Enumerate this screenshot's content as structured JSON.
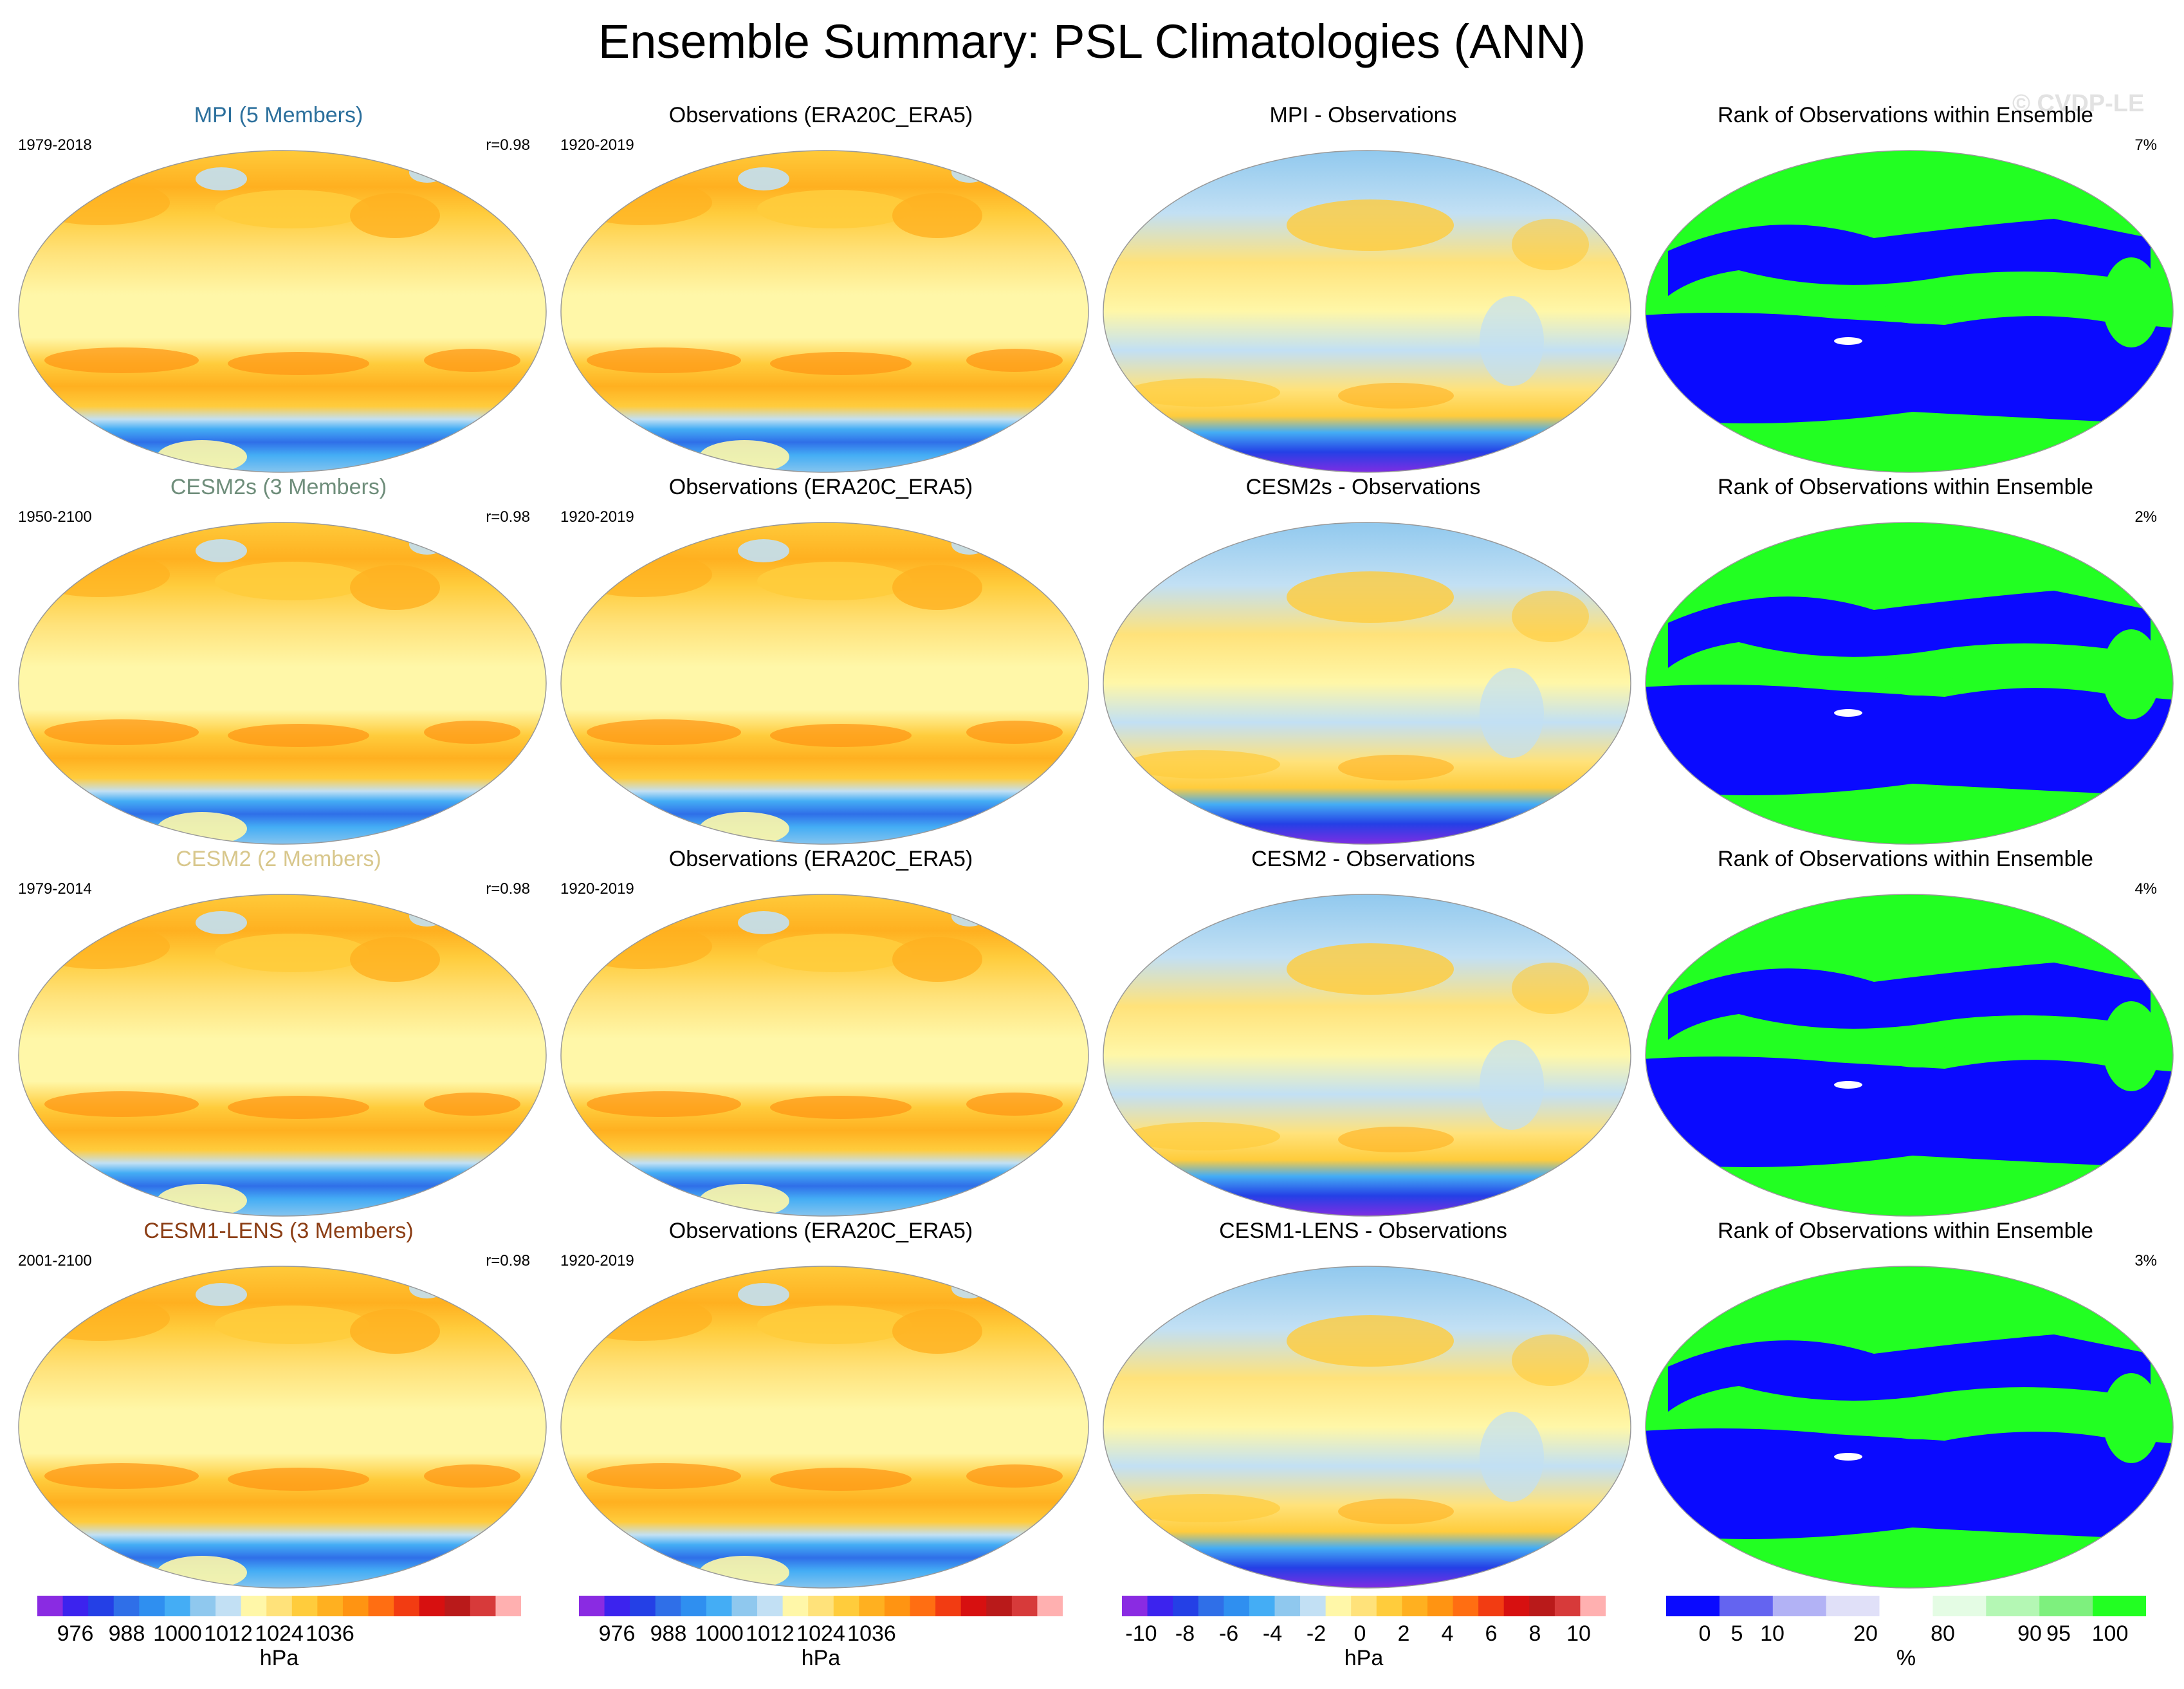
{
  "title": "Ensemble Summary: PSL Climatologies (ANN)",
  "watermark": "© CVDP-LE",
  "colors": {
    "psl_scale": [
      "#8a2be2",
      "#3c23ee",
      "#2440e6",
      "#2f6fe8",
      "#2f8ff0",
      "#44adf5",
      "#8fc8ee",
      "#c2e0f4",
      "#fff7a8",
      "#ffe27a",
      "#ffcc3c",
      "#ffb020",
      "#ff9412",
      "#ff6e12",
      "#f23c12",
      "#d71010",
      "#b91a1a",
      "#d73a3a",
      "#ffb0b0"
    ],
    "rank_scale": [
      "#0a0aff",
      "#6464f0",
      "#b2b2f5",
      "#e0e0f8",
      "#ffffff",
      "#e4fce4",
      "#b4f7b4",
      "#7ef07e",
      "#22ff22"
    ]
  },
  "rows": [
    {
      "model": {
        "title": "MPI (5 Members)",
        "title_color": "#2b6f9c",
        "years": "1979-2018",
        "r": "r=0.98"
      },
      "obs": {
        "title": "Observations (ERA20C_ERA5)",
        "years": "1920-2019"
      },
      "diff": {
        "title": "MPI - Observations"
      },
      "rank": {
        "title": "Rank of Observations within Ensemble",
        "pct": "7%"
      }
    },
    {
      "model": {
        "title": "CESM2s (3 Members)",
        "title_color": "#6e8d7a",
        "years": "1950-2100",
        "r": "r=0.98"
      },
      "obs": {
        "title": "Observations (ERA20C_ERA5)",
        "years": "1920-2019"
      },
      "diff": {
        "title": "CESM2s - Observations"
      },
      "rank": {
        "title": "Rank of Observations within Ensemble",
        "pct": "2%"
      }
    },
    {
      "model": {
        "title": "CESM2 (2 Members)",
        "title_color": "#d8c78c",
        "years": "1979-2014",
        "r": "r=0.98"
      },
      "obs": {
        "title": "Observations (ERA20C_ERA5)",
        "years": "1920-2019"
      },
      "diff": {
        "title": "CESM2 - Observations"
      },
      "rank": {
        "title": "Rank of Observations within Ensemble",
        "pct": "4%"
      }
    },
    {
      "model": {
        "title": "CESM1-LENS (3 Members)",
        "title_color": "#8b3d14",
        "years": "2001-2100",
        "r": "r=0.98"
      },
      "obs": {
        "title": "Observations (ERA20C_ERA5)",
        "years": "1920-2019"
      },
      "diff": {
        "title": "CESM1-LENS - Observations"
      },
      "rank": {
        "title": "Rank of Observations within Ensemble",
        "pct": "3%"
      }
    }
  ],
  "colorbars": {
    "psl1": {
      "labels": [
        "976",
        "988",
        "1000",
        "1012",
        "1024",
        "1036"
      ],
      "unit": "hPa"
    },
    "psl2": {
      "labels": [
        "976",
        "988",
        "1000",
        "1012",
        "1024",
        "1036"
      ],
      "unit": "hPa"
    },
    "diff": {
      "labels": [
        "-10",
        "-8",
        "-6",
        "-4",
        "-2",
        "0",
        "2",
        "4",
        "6",
        "8",
        "10"
      ],
      "unit": "hPa"
    },
    "rank": {
      "labels": [
        "0",
        "5",
        "10",
        "20",
        "80",
        "90",
        "95",
        "100"
      ],
      "unit": "%"
    }
  }
}
